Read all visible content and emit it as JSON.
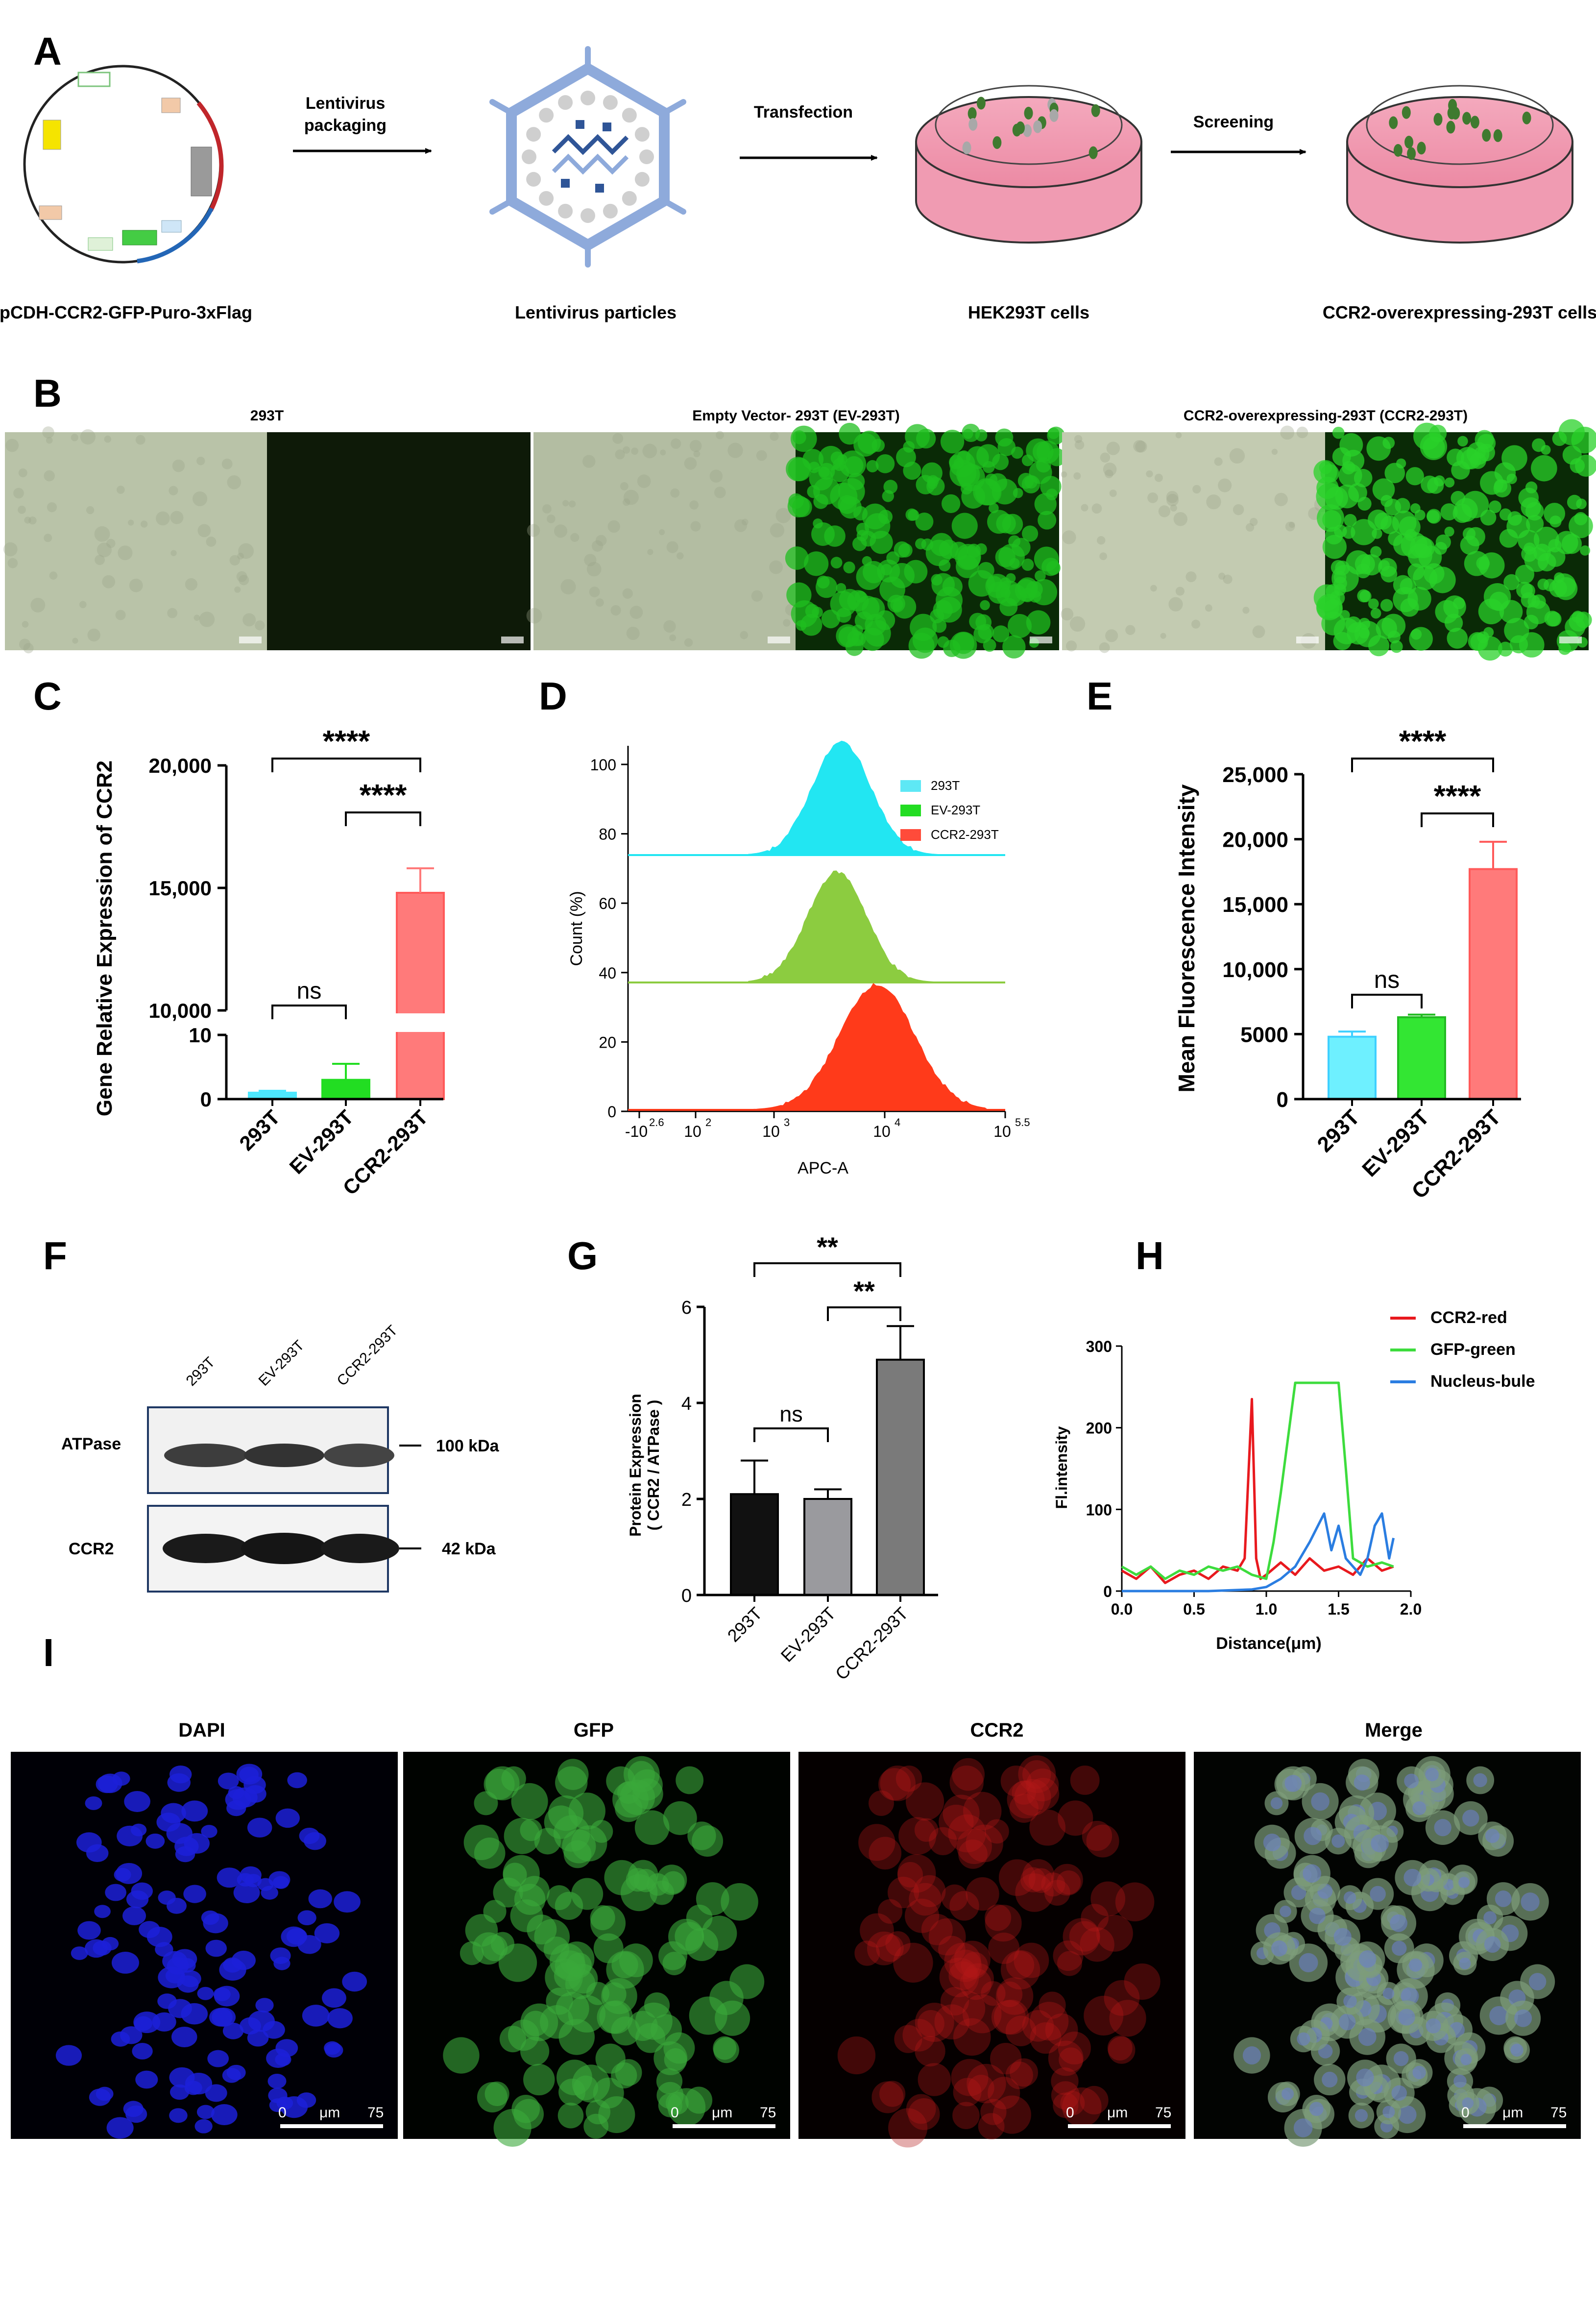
{
  "panels": {
    "A": "A",
    "B": "B",
    "C": "C",
    "D": "D",
    "E": "E",
    "F": "F",
    "G": "G",
    "H": "H",
    "I": "I"
  },
  "panel_a": {
    "plasmid_label": "pCDH-CCR2-GFP-Puro-3xFlag",
    "step1_line1": "Lentivirus",
    "step1_line2": "packaging",
    "virus_label": "Lentivirus particles",
    "step2": "Transfection",
    "dish1_label": "HEK293T cells",
    "step3": "Screening",
    "dish2_label": "CCR2-overexpressing-293T cells",
    "colors": {
      "dish": "#ee8ea8",
      "cell_green": "#3f7a2f",
      "cell_gray": "#a8a8a8",
      "virus": "#8eaadb",
      "rna": "#2f5597"
    }
  },
  "panel_b": {
    "groups": [
      {
        "title": "293T",
        "bright_color": "#b9c3a8",
        "fluor_color": "#0e1a08"
      },
      {
        "title": "Empty Vector- 293T (EV-293T)",
        "bright_color": "#b3bda2",
        "fluor_color": "#1fbf1f"
      },
      {
        "title": "CCR2-overexpressing-293T (CCR2-293T)",
        "bright_color": "#c3cbb1",
        "fluor_color": "#2ad12a"
      }
    ]
  },
  "chart_data": [
    {
      "id": "C",
      "type": "bar",
      "ylabel": "Gene Relative Expression of CCR2",
      "categories": [
        "293T",
        "EV-293T",
        "CCR2-293T"
      ],
      "values": [
        1,
        3,
        14800
      ],
      "errors": [
        0.3,
        2.5,
        1000
      ],
      "axis_break": {
        "lower": [
          0,
          10
        ],
        "upper": [
          10000,
          20000
        ]
      },
      "yticks": [
        "0",
        "10",
        "10,000",
        "15,000",
        "20,000"
      ],
      "colors": [
        "#4de8ff",
        "#22dd22",
        "#ff7a7a"
      ],
      "significance": [
        {
          "from": 0,
          "to": 2,
          "label": "****"
        },
        {
          "from": 1,
          "to": 2,
          "label": "****"
        },
        {
          "from": 0,
          "to": 1,
          "label": "ns"
        }
      ]
    },
    {
      "id": "D",
      "type": "area",
      "xlabel": "APC-A",
      "ylabel": "Count (%)",
      "xticks": [
        "-10",
        "10",
        "10",
        "10",
        "10"
      ],
      "xtick_sups": [
        "2.6",
        "2",
        "3",
        "4",
        "5.5"
      ],
      "yticks": [
        "0",
        "20",
        "40",
        "60",
        "80",
        "100"
      ],
      "series": [
        {
          "name": "293T",
          "color": "#22e6f2",
          "peak_log10": 3.65
        },
        {
          "name": "EV-293T",
          "color": "#8ccc40",
          "peak_log10": 3.6
        },
        {
          "name": "CCR2-293T",
          "color": "#ff3a1a",
          "peak_log10": 4.05
        }
      ],
      "legend_colors": [
        "#5ee8f5",
        "#22dd22",
        "#ff4b3a"
      ]
    },
    {
      "id": "E",
      "type": "bar",
      "ylabel": "Mean Fluorescence Intensity",
      "categories": [
        "293T",
        "EV-293T",
        "CCR2-293T"
      ],
      "values": [
        4800,
        6300,
        17700
      ],
      "errors": [
        400,
        200,
        2100
      ],
      "ylim": [
        0,
        25000
      ],
      "yticks": [
        "0",
        "5000",
        "10,000",
        "15,000",
        "20,000",
        "25,000"
      ],
      "colors": [
        "#6ef0ff",
        "#33e633",
        "#ff7a7a"
      ],
      "significance": [
        {
          "from": 0,
          "to": 2,
          "label": "****"
        },
        {
          "from": 1,
          "to": 2,
          "label": "****"
        },
        {
          "from": 0,
          "to": 1,
          "label": "ns"
        }
      ]
    },
    {
      "id": "G",
      "type": "bar",
      "ylabel_line1": "Protein Expression",
      "ylabel_line2": "( CCR2 / ATPase )",
      "categories": [
        "293T",
        "EV-293T",
        "CCR2-293T"
      ],
      "values": [
        2.1,
        2.0,
        4.9
      ],
      "errors": [
        0.7,
        0.2,
        0.7
      ],
      "ylim": [
        0,
        6
      ],
      "yticks": [
        "0",
        "2",
        "4",
        "6"
      ],
      "colors": [
        "#111111",
        "#9a9a9e",
        "#7a7a7a"
      ],
      "significance": [
        {
          "from": 0,
          "to": 2,
          "label": "**"
        },
        {
          "from": 1,
          "to": 2,
          "label": "**"
        },
        {
          "from": 0,
          "to": 1,
          "label": "ns"
        }
      ]
    },
    {
      "id": "H",
      "type": "line",
      "xlabel": "Distance(μm)",
      "ylabel": "Fl.intensity",
      "xlim": [
        0,
        2.0
      ],
      "ylim": [
        0,
        300
      ],
      "xticks": [
        "0.0",
        "0.5",
        "1.0",
        "1.5",
        "2.0"
      ],
      "yticks": [
        "0",
        "100",
        "200",
        "300"
      ],
      "series": [
        {
          "name": "CCR2-red",
          "color": "#e8191e",
          "x": [
            0,
            0.1,
            0.2,
            0.3,
            0.4,
            0.5,
            0.6,
            0.7,
            0.8,
            0.85,
            0.9,
            0.93,
            0.96,
            1.0,
            1.1,
            1.2,
            1.3,
            1.4,
            1.5,
            1.6,
            1.7,
            1.8,
            1.88
          ],
          "y": [
            25,
            15,
            30,
            10,
            20,
            25,
            15,
            30,
            25,
            40,
            235,
            40,
            15,
            20,
            35,
            20,
            40,
            25,
            30,
            20,
            40,
            25,
            30
          ]
        },
        {
          "name": "GFP-green",
          "color": "#3ddc3d",
          "x": [
            0,
            0.1,
            0.2,
            0.3,
            0.4,
            0.5,
            0.6,
            0.7,
            0.8,
            0.9,
            1.0,
            1.05,
            1.1,
            1.2,
            1.5,
            1.55,
            1.6,
            1.7,
            1.8,
            1.88
          ],
          "y": [
            30,
            20,
            30,
            15,
            25,
            20,
            30,
            25,
            30,
            20,
            15,
            60,
            120,
            255,
            255,
            150,
            40,
            30,
            35,
            30
          ]
        },
        {
          "name": "Nucleus-bule",
          "color": "#2a7de1",
          "x": [
            0,
            0.3,
            0.6,
            0.9,
            1.0,
            1.1,
            1.2,
            1.3,
            1.4,
            1.45,
            1.5,
            1.55,
            1.6,
            1.65,
            1.7,
            1.75,
            1.8,
            1.85,
            1.88
          ],
          "y": [
            0,
            0,
            0,
            2,
            5,
            15,
            30,
            60,
            95,
            50,
            80,
            40,
            30,
            20,
            40,
            80,
            95,
            40,
            65
          ]
        }
      ]
    }
  ],
  "panel_f": {
    "lanes": [
      "293T",
      "EV-293T",
      "CCR2-293T"
    ],
    "rows": [
      {
        "name": "ATPase",
        "marker": "100 kDa"
      },
      {
        "name": "CCR2",
        "marker": "42 kDa"
      }
    ]
  },
  "panel_i": {
    "channels": [
      {
        "title": "DAPI",
        "bg": "#000006",
        "cell": "#1c20d8"
      },
      {
        "title": "GFP",
        "bg": "#000300",
        "cell": "#3aa93a"
      },
      {
        "title": "CCR2",
        "bg": "#050000",
        "cell": "#b51818"
      },
      {
        "title": "Merge",
        "bg": "#020402",
        "cell": "#7e9d7a"
      }
    ],
    "scale_start": "0",
    "scale_unit": "μm",
    "scale_end": "75"
  }
}
